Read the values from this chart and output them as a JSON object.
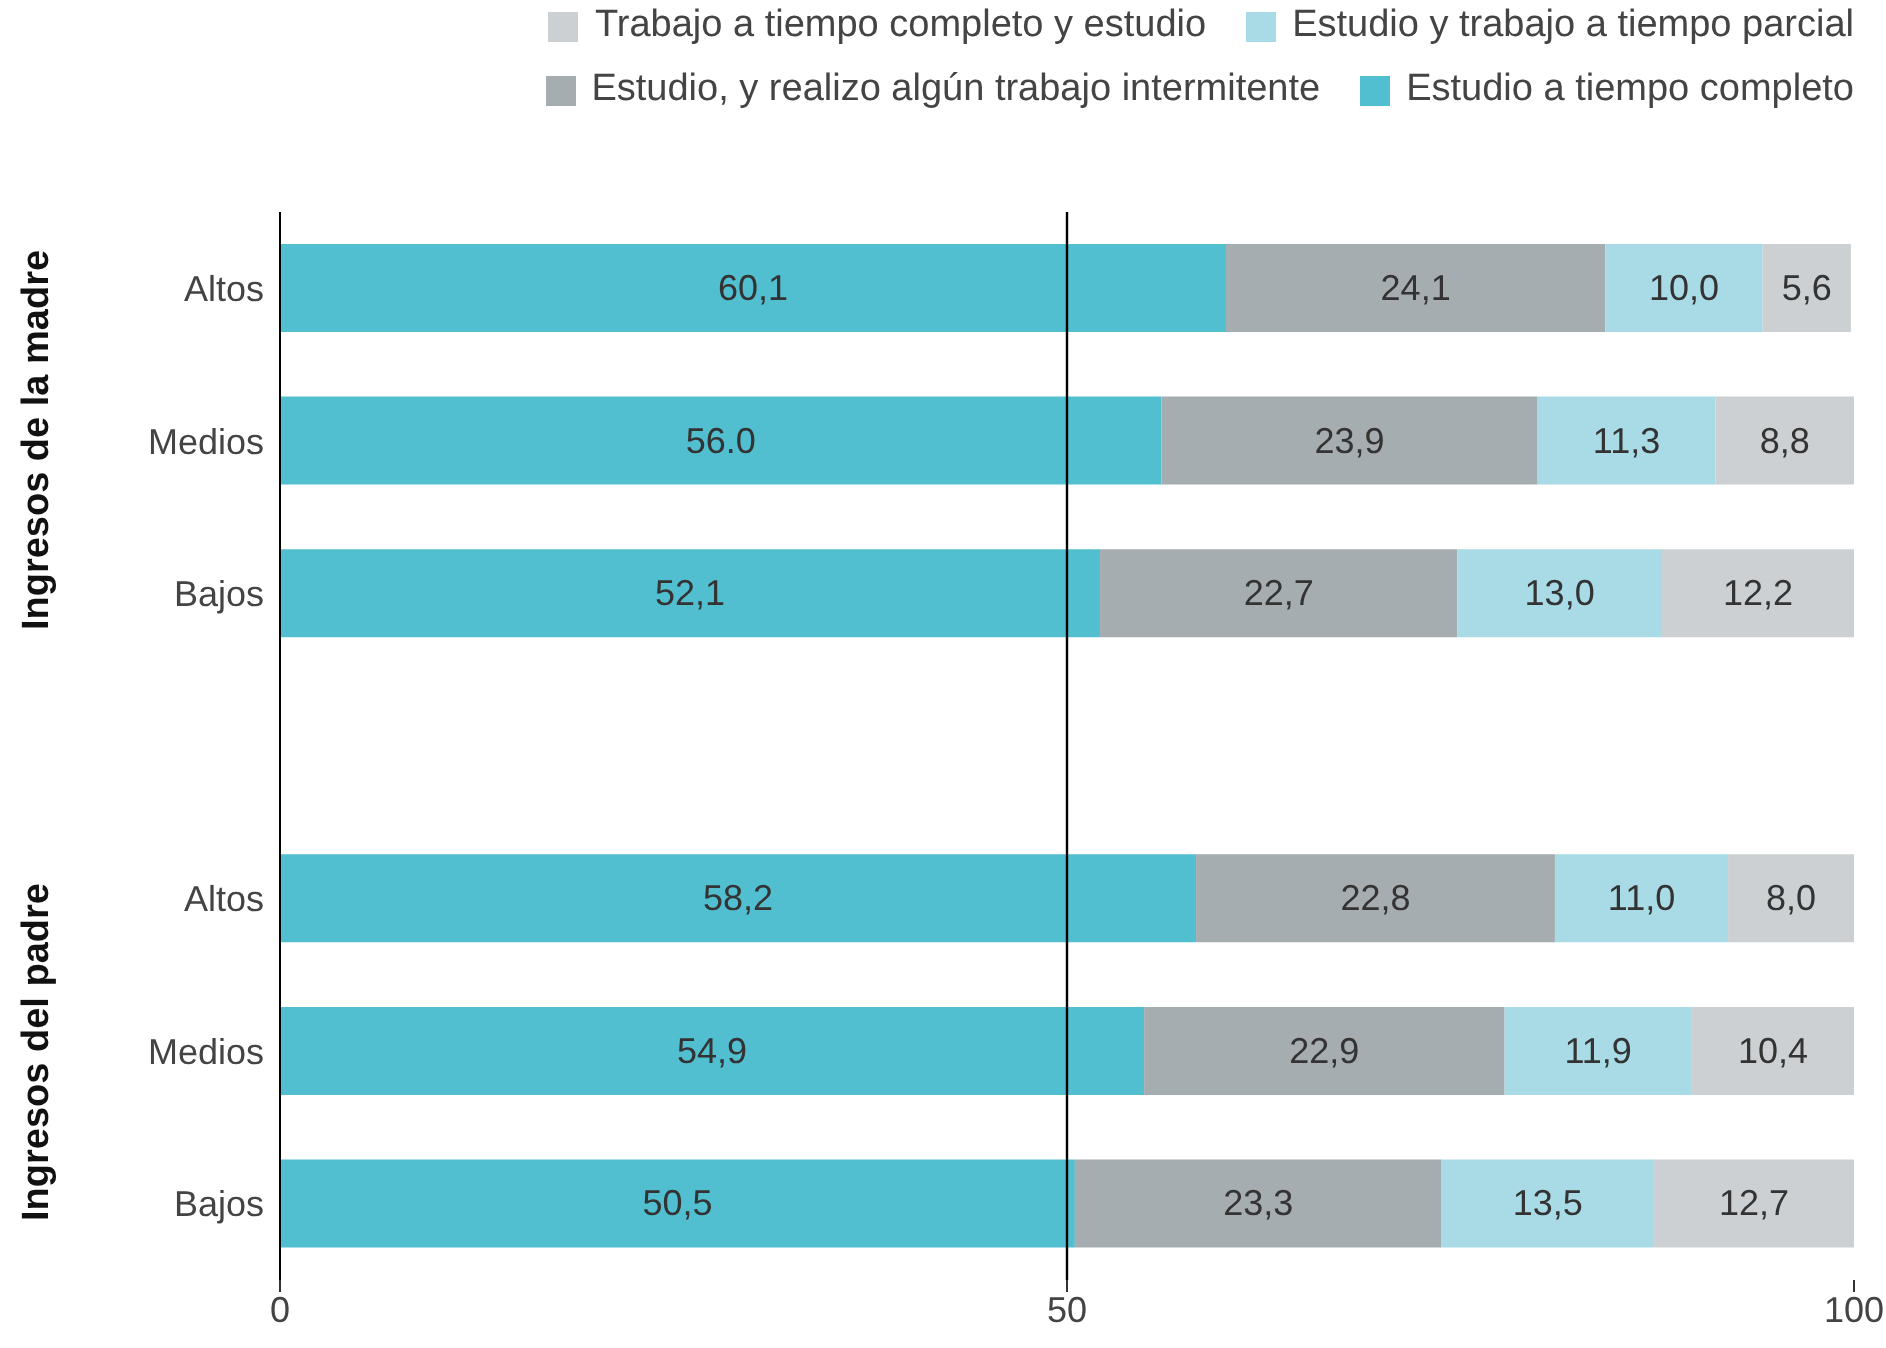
{
  "chart_data": {
    "type": "bar",
    "orientation": "horizontal",
    "stacked": true,
    "categories": [
      "Altos",
      "Medios",
      "Bajos",
      null,
      "Altos",
      "Medios",
      "Bajos"
    ],
    "series": [
      {
        "name": "Estudio a tiempo completo",
        "color": "#52bfd1",
        "values": [
          60.1,
          56.0,
          52.1,
          null,
          58.2,
          54.9,
          50.5
        ],
        "value_labels": [
          "60,1",
          "56.0",
          "52,1",
          null,
          "58,2",
          "54,9",
          "50,5"
        ]
      },
      {
        "name": "Estudio, y realizo algún trabajo intermitente",
        "color": "#a6adb0",
        "values": [
          24.1,
          23.9,
          22.7,
          null,
          22.8,
          22.9,
          23.3
        ],
        "value_labels": [
          "24,1",
          "23,9",
          "22,7",
          null,
          "22,8",
          "22,9",
          "23,3"
        ]
      },
      {
        "name": "Estudio y trabajo a tiempo parcial",
        "color": "#a8dbe5",
        "values": [
          10.0,
          11.3,
          13.0,
          null,
          11.0,
          11.9,
          13.5
        ],
        "value_labels": [
          "10,0",
          "11,3",
          "13,0",
          null,
          "11,0",
          "11,9",
          "13,5"
        ]
      },
      {
        "name": "Trabajo a tiempo completo y estudio",
        "color": "#ccd0d2",
        "values": [
          5.6,
          8.8,
          12.2,
          null,
          8.0,
          10.4,
          12.7
        ],
        "value_labels": [
          "5,6",
          "8,8",
          "12,2",
          null,
          "8,0",
          "10,4",
          "12,7"
        ]
      }
    ],
    "xlim": [
      0,
      100
    ],
    "xticks": [
      0,
      50,
      100
    ],
    "ref_lines": [
      {
        "axis": "x",
        "value": 50,
        "color": "#000000"
      }
    ],
    "annotations": [
      "Ingresos de la madre",
      "Ingresos del padre"
    ],
    "legend": "top right",
    "grid": false
  }
}
